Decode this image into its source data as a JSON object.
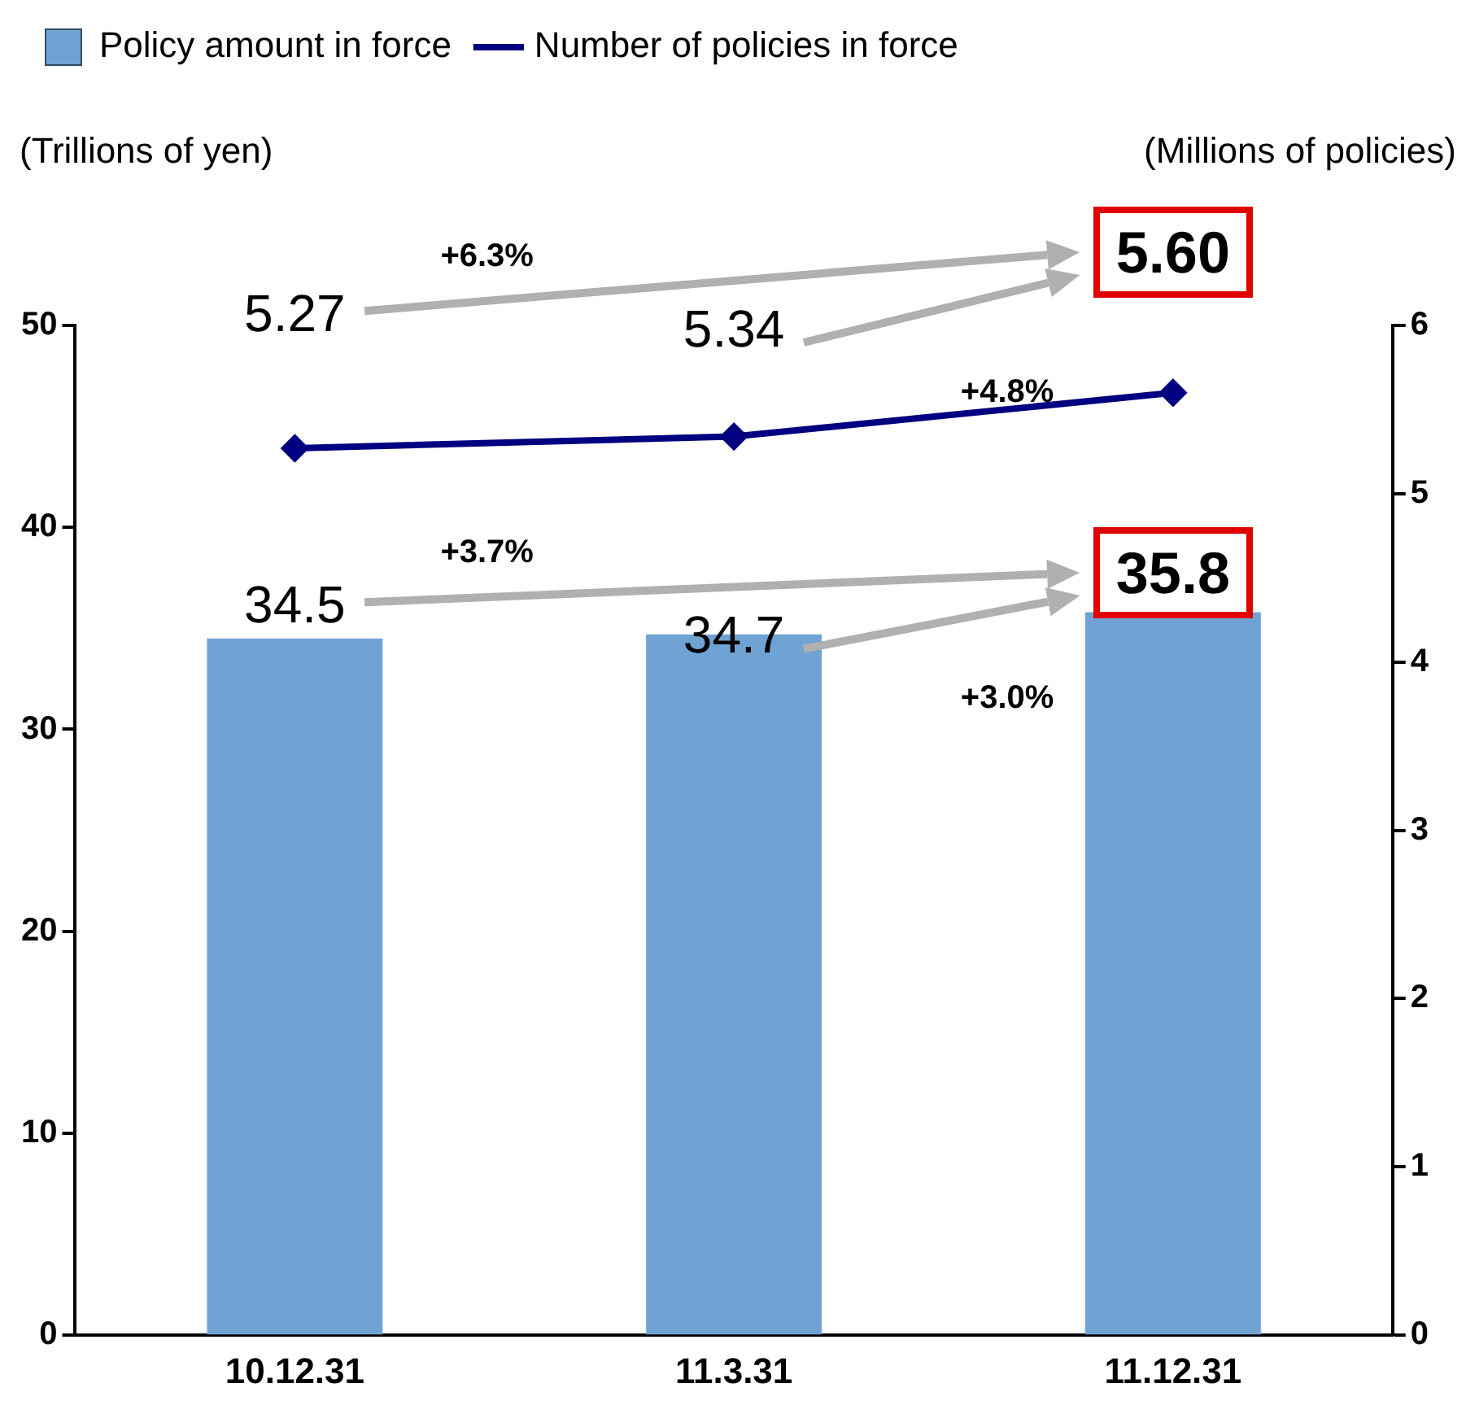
{
  "chart_data": {
    "type": "bar",
    "categories": [
      "10.12.31",
      "11.3.31",
      "11.12.31"
    ],
    "series": [
      {
        "name": "Policy amount in force",
        "type": "bar",
        "color": "#6fa3d3",
        "values": [
          34.5,
          34.7,
          35.8
        ],
        "value_labels": [
          "34.5",
          "34.7",
          "35.8"
        ]
      },
      {
        "name": "Number of policies in force",
        "type": "line",
        "axis": "y2",
        "color": "#000080",
        "values": [
          5.27,
          5.34,
          5.6
        ],
        "value_labels": [
          "5.27",
          "5.34",
          "5.60"
        ]
      }
    ],
    "ylabel": "(Trillions of yen)",
    "y2label": "(Millions of policies)",
    "ylim": [
      0,
      50
    ],
    "yticks": [
      0,
      10,
      20,
      30,
      40,
      50
    ],
    "y2lim": [
      0,
      6
    ],
    "y2ticks": [
      0,
      1,
      2,
      3,
      4,
      5,
      6
    ],
    "annotations": [
      "+6.3%",
      "+4.8%",
      "+3.7%",
      "+3.0%"
    ],
    "grid": false,
    "legend": "top left",
    "marker": "diamond",
    "line_style": "solid"
  }
}
